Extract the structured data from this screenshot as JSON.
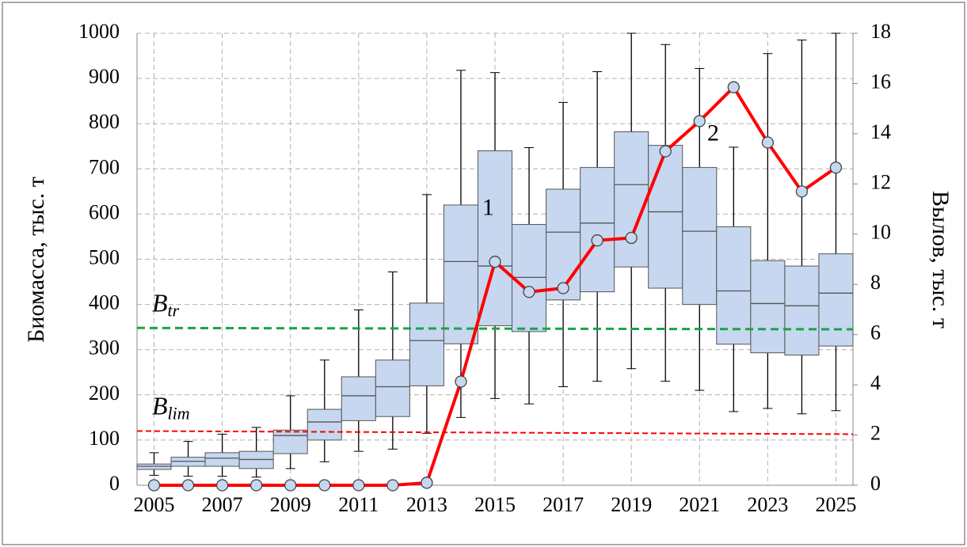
{
  "chart_data": {
    "type": "box-line",
    "y_label": "Биомасса, тыс. т",
    "y2_label": "Вылов, тыс. т",
    "xlim": [
      2004.5,
      2025.5
    ],
    "xticks": [
      2005,
      2007,
      2009,
      2011,
      2013,
      2015,
      2017,
      2019,
      2021,
      2023,
      2025
    ],
    "ylim": [
      0,
      1000
    ],
    "yticks": [
      0,
      100,
      200,
      300,
      400,
      500,
      600,
      700,
      800,
      900,
      1000
    ],
    "y2lim": [
      0,
      18
    ],
    "y2ticks": [
      0,
      2,
      4,
      6,
      8,
      10,
      12,
      14,
      16,
      18
    ],
    "grid": true,
    "boxes": {
      "color": "#c6d7ef",
      "x": [
        2005,
        2006,
        2007,
        2008,
        2009,
        2010,
        2011,
        2012,
        2013,
        2014,
        2015,
        2016,
        2017,
        2018,
        2019,
        2020,
        2021,
        2022,
        2023,
        2024,
        2025
      ],
      "low": [
        22,
        20,
        20,
        18,
        37,
        52,
        75,
        80,
        115,
        150,
        192,
        180,
        218,
        230,
        258,
        230,
        210,
        163,
        170,
        158,
        165
      ],
      "q1": [
        35,
        42,
        42,
        37,
        70,
        100,
        143,
        152,
        220,
        313,
        353,
        340,
        410,
        428,
        483,
        436,
        400,
        312,
        293,
        288,
        308
      ],
      "median": [
        42,
        53,
        60,
        57,
        110,
        140,
        198,
        218,
        320,
        495,
        485,
        460,
        560,
        580,
        665,
        605,
        562,
        430,
        402,
        397,
        425
      ],
      "q3": [
        47,
        62,
        72,
        75,
        122,
        168,
        240,
        277,
        403,
        620,
        740,
        577,
        655,
        703,
        782,
        752,
        703,
        572,
        497,
        485,
        512
      ],
      "high": [
        72,
        97,
        113,
        128,
        198,
        277,
        388,
        472,
        643,
        918,
        913,
        747,
        847,
        915,
        1000,
        975,
        922,
        748,
        955,
        985,
        1000
      ]
    },
    "series": [
      {
        "color": "#ff0000",
        "axis": "y2",
        "x": [
          2005,
          2006,
          2007,
          2008,
          2009,
          2010,
          2011,
          2012,
          2013,
          2014,
          2015,
          2016,
          2017,
          2018,
          2019,
          2020,
          2021,
          2022,
          2023,
          2024,
          2025
        ],
        "values": [
          0,
          0,
          0,
          0,
          0,
          0,
          0,
          0,
          0.1,
          4.13,
          8.9,
          7.7,
          7.85,
          9.75,
          9.85,
          13.3,
          14.5,
          15.85,
          13.65,
          11.7,
          12.65
        ]
      }
    ],
    "reference_lines": [
      {
        "label": "B",
        "subscript": "tr",
        "color": "#1aa34a",
        "values": [
          348,
          345
        ]
      },
      {
        "label": "B",
        "subscript": "lim",
        "color": "#ff0000",
        "values": [
          120,
          113
        ]
      }
    ],
    "annotations": [
      {
        "text": "1",
        "x": 2014.8,
        "y": 610
      },
      {
        "text": "2",
        "x": 2021.4,
        "y": 775
      }
    ]
  }
}
